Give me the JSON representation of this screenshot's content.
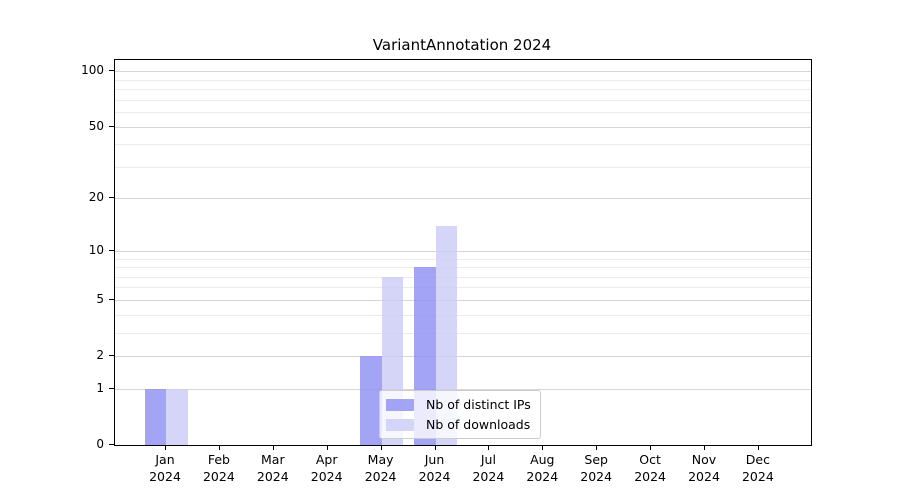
{
  "chart_data": {
    "type": "bar",
    "title": "VariantAnnotation 2024",
    "scale": "log1p",
    "categories": [
      "Jan",
      "Feb",
      "Mar",
      "Apr",
      "May",
      "Jun",
      "Jul",
      "Aug",
      "Sep",
      "Oct",
      "Nov",
      "Dec"
    ],
    "x_sublabel": "2024",
    "series": [
      {
        "name": "Nb of distinct IPs",
        "color": "rgba(148,148,242,0.85)",
        "values": [
          1,
          0,
          0,
          0,
          2,
          8,
          0,
          0,
          0,
          0,
          0,
          0
        ]
      },
      {
        "name": "Nb of downloads",
        "color": "rgba(206,206,247,0.85)",
        "values": [
          1,
          0,
          0,
          0,
          7,
          14,
          0,
          0,
          0,
          0,
          0,
          0
        ]
      }
    ],
    "y_ticks": [
      0,
      1,
      2,
      5,
      10,
      20,
      50,
      100
    ],
    "y_gridlines_labeled": [
      1,
      2,
      5,
      10,
      20,
      50,
      100
    ],
    "y_gridlines_minor": [
      3,
      4,
      6,
      7,
      8,
      9,
      30,
      40,
      60,
      70,
      80,
      90
    ],
    "ylim": [
      0,
      110
    ],
    "grid_color_labeled": "#d6d6d6",
    "grid_color_minor": "#ebebeb",
    "legend_position": "lower center",
    "legend_entries": [
      "Nb of distinct IPs",
      "Nb of downloads"
    ]
  }
}
